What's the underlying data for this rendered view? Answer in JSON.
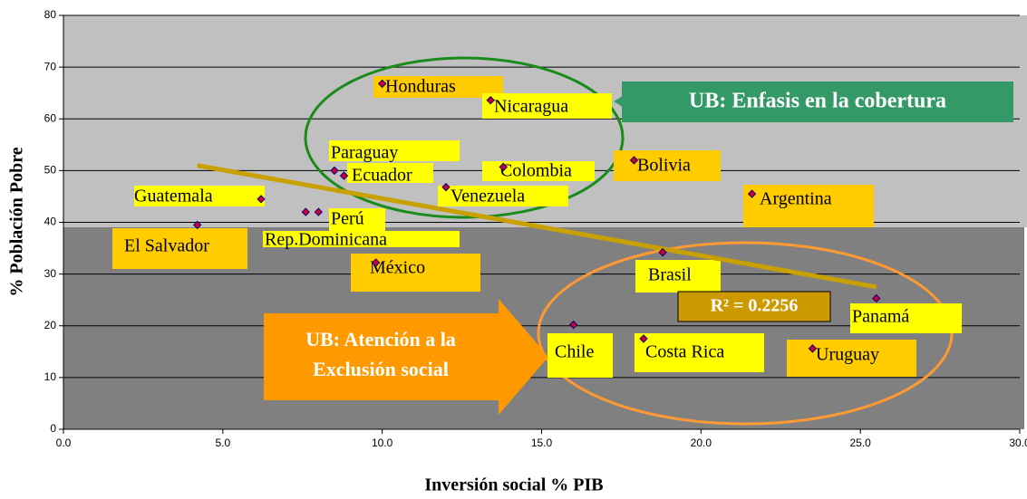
{
  "chart_data": {
    "type": "scatter",
    "x_label": "Inversión social % PIB",
    "y_label": "% Población Pobre",
    "labels": [
      "El Salvador",
      "Guatemala",
      "Rep.Dominicana",
      "Perú",
      "Paraguay",
      "Ecuador",
      "México",
      "Honduras",
      "Venezuela",
      "Nicaragua",
      "Colombia",
      "Chile",
      "Bolivia",
      "Costa Rica",
      "Brasil",
      "Argentina",
      "Uruguay",
      "Panamá"
    ],
    "x": [
      4.2,
      6.2,
      7.6,
      8.0,
      8.5,
      8.8,
      9.8,
      10.0,
      12.0,
      13.4,
      13.8,
      16.0,
      17.9,
      18.2,
      18.8,
      21.6,
      23.5,
      25.5
    ],
    "y": [
      39.5,
      44.5,
      42,
      42,
      50,
      49,
      32.2,
      66.8,
      46.8,
      63.6,
      50.7,
      20.2,
      52,
      17.5,
      34.2,
      45.5,
      15.6,
      25.3
    ],
    "color": "#cc0033",
    "trendline": {
      "x": [
        4.2,
        25.5
      ],
      "y": [
        51,
        27.5
      ],
      "color": "#c8a000"
    },
    "r2_label": "R² = 0.2256",
    "annotations": [
      "UB: Enfasis en la cobertura",
      "UB: Atención a la",
      "Exclusión social"
    ],
    "xlim": [
      0,
      30
    ],
    "ylim": [
      0,
      80
    ],
    "xticks": [
      {
        "value": 0,
        "label": "0.0"
      },
      {
        "value": 5,
        "label": "5.0"
      },
      {
        "value": 10,
        "label": "10.0"
      },
      {
        "value": 15,
        "label": "15.0"
      },
      {
        "value": 20,
        "label": "20.0"
      },
      {
        "value": 25,
        "label": "25.0"
      },
      {
        "value": 30,
        "label": "30.0"
      }
    ],
    "yticks": [
      0,
      10,
      20,
      30,
      40,
      50,
      60,
      70,
      80
    ],
    "grid": true
  }
}
